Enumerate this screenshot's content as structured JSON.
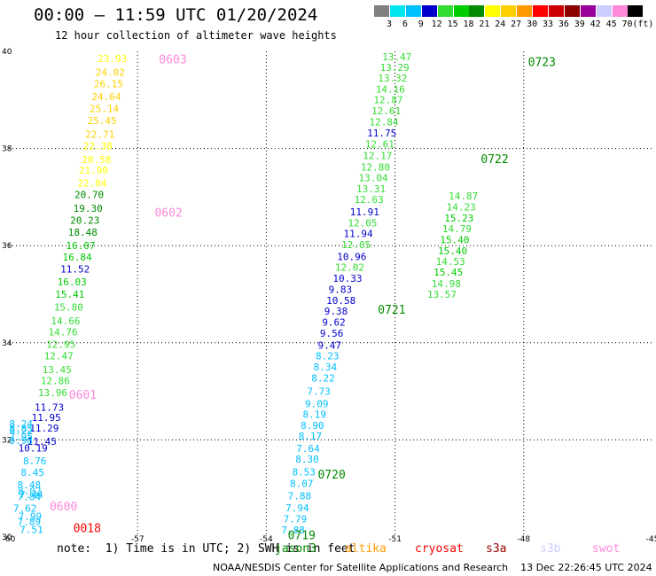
{
  "header": {
    "title": "00:00 – 11:59 UTC 01/20/2024",
    "subtitle": "12 hour collection of altimeter wave heights"
  },
  "colorbar": {
    "unit": "(ft)",
    "bins": [
      {
        "label": "3",
        "color": "#808080"
      },
      {
        "label": "6",
        "color": "#00e5ee"
      },
      {
        "label": "9",
        "color": "#00bfff"
      },
      {
        "label": "12",
        "color": "#0000cd"
      },
      {
        "label": "15",
        "color": "#33dd33"
      },
      {
        "label": "18",
        "color": "#00cc00"
      },
      {
        "label": "21",
        "color": "#008b00"
      },
      {
        "label": "24",
        "color": "#ffff00"
      },
      {
        "label": "27",
        "color": "#ffd000"
      },
      {
        "label": "30",
        "color": "#ff9900"
      },
      {
        "label": "33",
        "color": "#ff0000"
      },
      {
        "label": "36",
        "color": "#cc0000"
      },
      {
        "label": "39",
        "color": "#8b0000"
      },
      {
        "label": "42",
        "color": "#990099"
      },
      {
        "label": "45",
        "color": "#ccccff"
      },
      {
        "label": "70",
        "color": "#ff88dd"
      },
      {
        "label": "",
        "color": "#000000"
      }
    ]
  },
  "notes": "note:  1) Time is in UTC; 2) SWH is in feet",
  "satellites": [
    {
      "name": "jason3",
      "color": "#008b00"
    },
    {
      "name": "altika",
      "color": "#ff9900"
    },
    {
      "name": "cryosat",
      "color": "#ff0000"
    },
    {
      "name": "s3a",
      "color": "#990000"
    },
    {
      "name": "s3b",
      "color": "#ccccff"
    },
    {
      "name": "swot",
      "color": "#ff88dd"
    }
  ],
  "footer": "NOAA/NESDIS Center for Satellite Applications and Research    13 Dec 22:26:45 UTC 2024",
  "chart_data": {
    "type": "scatter",
    "xlim": [
      -60,
      -45
    ],
    "ylim": [
      30,
      40
    ],
    "xticks": [
      "-60",
      "-57",
      "-54",
      "-51",
      "-48",
      "-45"
    ],
    "yticks": [
      "30",
      "32",
      "34",
      "36",
      "38",
      "40"
    ],
    "grid": true,
    "points": [
      {
        "lon": -59.75,
        "lat": 30.08,
        "label": "7.51",
        "color": "#00bfff"
      },
      {
        "lon": -59.8,
        "lat": 30.25,
        "label": "7.89",
        "color": "#00bfff"
      },
      {
        "lon": -59.78,
        "lat": 30.36,
        "label": "7.99",
        "color": "#00bfff"
      },
      {
        "lon": -59.9,
        "lat": 30.52,
        "label": "7.62",
        "color": "#00bfff"
      },
      {
        "lon": -59.8,
        "lat": 30.76,
        "label": "7.84",
        "color": "#00bfff"
      },
      {
        "lon": -59.75,
        "lat": 30.8,
        "label": "7.44",
        "color": "#00bfff"
      },
      {
        "lon": -59.79,
        "lat": 30.88,
        "label": "8.02",
        "color": "#00bfff"
      },
      {
        "lon": -59.8,
        "lat": 31.0,
        "label": "8.48",
        "color": "#00bfff"
      },
      {
        "lon": -59.72,
        "lat": 31.26,
        "label": "8.45",
        "color": "#00bfff"
      },
      {
        "lon": -59.67,
        "lat": 31.5,
        "label": "8.76",
        "color": "#00bfff"
      },
      {
        "lon": -59.78,
        "lat": 31.76,
        "label": "10.19",
        "color": "#0000cd"
      },
      {
        "lon": -59.57,
        "lat": 31.9,
        "label": "11.45",
        "color": "#0000cd"
      },
      {
        "lon": -59.99,
        "lat": 31.92,
        "label": "9.98",
        "color": "#00bfff"
      },
      {
        "lon": -59.99,
        "lat": 32.0,
        "label": "7.95",
        "color": "#00bfff"
      },
      {
        "lon": -59.99,
        "lat": 32.12,
        "label": "8.22",
        "color": "#00bfff"
      },
      {
        "lon": -59.52,
        "lat": 32.17,
        "label": "11.29",
        "color": "#0000cd"
      },
      {
        "lon": -59.99,
        "lat": 32.16,
        "label": "8.85",
        "color": "#00bfff"
      },
      {
        "lon": -59.99,
        "lat": 32.26,
        "label": "8.24",
        "color": "#00bfff"
      },
      {
        "lon": -59.47,
        "lat": 32.39,
        "label": "11.95",
        "color": "#0000cd"
      },
      {
        "lon": -59.4,
        "lat": 32.6,
        "label": "11.73",
        "color": "#0000cd"
      },
      {
        "lon": -59.32,
        "lat": 32.9,
        "label": "13.96",
        "color": "#33dd33"
      },
      {
        "lon": -59.26,
        "lat": 33.15,
        "label": "12.86",
        "color": "#33dd33"
      },
      {
        "lon": -59.22,
        "lat": 33.38,
        "label": "13.45",
        "color": "#33dd33"
      },
      {
        "lon": -59.18,
        "lat": 33.66,
        "label": "12.47",
        "color": "#33dd33"
      },
      {
        "lon": -59.13,
        "lat": 33.9,
        "label": "12.95",
        "color": "#33dd33"
      },
      {
        "lon": -59.08,
        "lat": 34.15,
        "label": "14.76",
        "color": "#33dd33"
      },
      {
        "lon": -59.02,
        "lat": 34.38,
        "label": "14.66",
        "color": "#33dd33"
      },
      {
        "lon": -58.95,
        "lat": 34.66,
        "label": "15.80",
        "color": "#33dd33"
      },
      {
        "lon": -58.92,
        "lat": 34.93,
        "label": "15.41",
        "color": "#00cc00"
      },
      {
        "lon": -58.87,
        "lat": 35.18,
        "label": "16.03",
        "color": "#00cc00"
      },
      {
        "lon": -58.8,
        "lat": 35.45,
        "label": "11.52",
        "color": "#0000cd"
      },
      {
        "lon": -58.75,
        "lat": 35.69,
        "label": "16.84",
        "color": "#00cc00"
      },
      {
        "lon": -58.67,
        "lat": 35.93,
        "label": "16.07",
        "color": "#00cc00"
      },
      {
        "lon": -58.62,
        "lat": 36.2,
        "label": "18.48",
        "color": "#008b00"
      },
      {
        "lon": -58.57,
        "lat": 36.45,
        "label": "20.23",
        "color": "#008b00"
      },
      {
        "lon": -58.5,
        "lat": 36.7,
        "label": "19.30",
        "color": "#008b00"
      },
      {
        "lon": -58.47,
        "lat": 36.98,
        "label": "20.70",
        "color": "#008b00"
      },
      {
        "lon": -58.4,
        "lat": 37.22,
        "label": "22.04",
        "color": "#ffff00"
      },
      {
        "lon": -58.37,
        "lat": 37.48,
        "label": "21.90",
        "color": "#ffff00"
      },
      {
        "lon": -58.3,
        "lat": 37.7,
        "label": "20.58",
        "color": "#ffff00"
      },
      {
        "lon": -58.27,
        "lat": 37.98,
        "label": "22.38",
        "color": "#ffff00"
      },
      {
        "lon": -58.22,
        "lat": 38.22,
        "label": "22.71",
        "color": "#ffd000"
      },
      {
        "lon": -58.17,
        "lat": 38.5,
        "label": "25.45",
        "color": "#ffd000"
      },
      {
        "lon": -58.12,
        "lat": 38.75,
        "label": "25.14",
        "color": "#ffd000"
      },
      {
        "lon": -58.07,
        "lat": 39.0,
        "label": "24.64",
        "color": "#ffd000"
      },
      {
        "lon": -58.02,
        "lat": 39.26,
        "label": "26.15",
        "color": "#ffd000"
      },
      {
        "lon": -57.98,
        "lat": 39.5,
        "label": "24.02",
        "color": "#ffd000"
      },
      {
        "lon": -57.93,
        "lat": 39.78,
        "label": "23.93",
        "color": "#ffff00"
      },
      {
        "lon": -53.65,
        "lat": 30.07,
        "label": "7.88",
        "color": "#00bfff"
      },
      {
        "lon": -53.6,
        "lat": 30.3,
        "label": "7.79",
        "color": "#00bfff"
      },
      {
        "lon": -53.55,
        "lat": 30.53,
        "label": "7.94",
        "color": "#00bfff"
      },
      {
        "lon": -53.5,
        "lat": 30.78,
        "label": "7.88",
        "color": "#00bfff"
      },
      {
        "lon": -53.45,
        "lat": 31.03,
        "label": "8.07",
        "color": "#00bfff"
      },
      {
        "lon": -53.4,
        "lat": 31.27,
        "label": "8.53",
        "color": "#00bfff"
      },
      {
        "lon": -53.32,
        "lat": 31.53,
        "label": "8.30",
        "color": "#00bfff"
      },
      {
        "lon": -53.3,
        "lat": 31.75,
        "label": "7.64",
        "color": "#00bfff"
      },
      {
        "lon": -53.25,
        "lat": 32.01,
        "label": "8.17",
        "color": "#00bfff"
      },
      {
        "lon": -53.2,
        "lat": 32.23,
        "label": "8.90",
        "color": "#00bfff"
      },
      {
        "lon": -53.15,
        "lat": 32.45,
        "label": "8.19",
        "color": "#00bfff"
      },
      {
        "lon": -53.1,
        "lat": 32.67,
        "label": "9.09",
        "color": "#00bfff"
      },
      {
        "lon": -53.05,
        "lat": 32.93,
        "label": "7.73",
        "color": "#00bfff"
      },
      {
        "lon": -52.95,
        "lat": 33.2,
        "label": "8.22",
        "color": "#00bfff"
      },
      {
        "lon": -52.9,
        "lat": 33.43,
        "label": "8.34",
        "color": "#00bfff"
      },
      {
        "lon": -52.85,
        "lat": 33.66,
        "label": "8.23",
        "color": "#00bfff"
      },
      {
        "lon": -52.8,
        "lat": 33.88,
        "label": "9.47",
        "color": "#0000cd"
      },
      {
        "lon": -52.75,
        "lat": 34.12,
        "label": "9.56",
        "color": "#0000cd"
      },
      {
        "lon": -52.7,
        "lat": 34.35,
        "label": "9.62",
        "color": "#0000cd"
      },
      {
        "lon": -52.65,
        "lat": 34.58,
        "label": "9.38",
        "color": "#0000cd"
      },
      {
        "lon": -52.6,
        "lat": 34.8,
        "label": "10.58",
        "color": "#0000cd"
      },
      {
        "lon": -52.55,
        "lat": 35.03,
        "label": "9.83",
        "color": "#0000cd"
      },
      {
        "lon": -52.45,
        "lat": 35.26,
        "label": "10.33",
        "color": "#0000cd"
      },
      {
        "lon": -52.4,
        "lat": 35.48,
        "label": "12.02",
        "color": "#33dd33"
      },
      {
        "lon": -52.35,
        "lat": 35.7,
        "label": "10.96",
        "color": "#0000cd"
      },
      {
        "lon": -52.25,
        "lat": 35.95,
        "label": "12.05",
        "color": "#33dd33"
      },
      {
        "lon": -52.2,
        "lat": 36.18,
        "label": "11.94",
        "color": "#0000cd"
      },
      {
        "lon": -52.1,
        "lat": 36.4,
        "label": "12.05",
        "color": "#33dd33"
      },
      {
        "lon": -52.05,
        "lat": 36.62,
        "label": "11.91",
        "color": "#0000cd"
      },
      {
        "lon": -51.95,
        "lat": 36.88,
        "label": "12.63",
        "color": "#33dd33"
      },
      {
        "lon": -51.9,
        "lat": 37.1,
        "label": "13.31",
        "color": "#33dd33"
      },
      {
        "lon": -51.85,
        "lat": 37.33,
        "label": "13.04",
        "color": "#33dd33"
      },
      {
        "lon": -51.8,
        "lat": 37.55,
        "label": "12.80",
        "color": "#33dd33"
      },
      {
        "lon": -51.75,
        "lat": 37.78,
        "label": "12.17",
        "color": "#33dd33"
      },
      {
        "lon": -51.7,
        "lat": 38.02,
        "label": "12.61",
        "color": "#33dd33"
      },
      {
        "lon": -51.65,
        "lat": 38.25,
        "label": "11.75",
        "color": "#0000cd"
      },
      {
        "lon": -51.6,
        "lat": 38.48,
        "label": "12.84",
        "color": "#33dd33"
      },
      {
        "lon": -51.55,
        "lat": 38.7,
        "label": "12.61",
        "color": "#33dd33"
      },
      {
        "lon": -51.5,
        "lat": 38.93,
        "label": "12.87",
        "color": "#33dd33"
      },
      {
        "lon": -51.45,
        "lat": 39.15,
        "label": "14.16",
        "color": "#33dd33"
      },
      {
        "lon": -51.4,
        "lat": 39.38,
        "label": "13.32",
        "color": "#33dd33"
      },
      {
        "lon": -51.35,
        "lat": 39.6,
        "label": "13.29",
        "color": "#33dd33"
      },
      {
        "lon": -51.3,
        "lat": 39.82,
        "label": "13.47",
        "color": "#33dd33"
      },
      {
        "lon": -50.25,
        "lat": 34.93,
        "label": "13.57",
        "color": "#33dd33"
      },
      {
        "lon": -50.15,
        "lat": 35.15,
        "label": "14.98",
        "color": "#33dd33"
      },
      {
        "lon": -50.1,
        "lat": 35.38,
        "label": "15.45",
        "color": "#00cc00"
      },
      {
        "lon": -50.05,
        "lat": 35.6,
        "label": "14.53",
        "color": "#33dd33"
      },
      {
        "lon": -50.0,
        "lat": 35.82,
        "label": "15.40",
        "color": "#00cc00"
      },
      {
        "lon": -49.95,
        "lat": 36.05,
        "label": "15.40",
        "color": "#00cc00"
      },
      {
        "lon": -49.9,
        "lat": 36.28,
        "label": "14.79",
        "color": "#33dd33"
      },
      {
        "lon": -49.85,
        "lat": 36.5,
        "label": "15.23",
        "color": "#00cc00"
      },
      {
        "lon": -49.8,
        "lat": 36.72,
        "label": "14.23",
        "color": "#33dd33"
      },
      {
        "lon": -49.75,
        "lat": 36.95,
        "label": "14.87",
        "color": "#33dd33"
      }
    ],
    "time_labels": [
      {
        "lon": -56.5,
        "lat": 39.75,
        "label": "0603",
        "color": "#ff88dd"
      },
      {
        "lon": -56.6,
        "lat": 36.6,
        "label": "0602",
        "color": "#ff88dd"
      },
      {
        "lon": -58.6,
        "lat": 32.85,
        "label": "0601",
        "color": "#ff88dd"
      },
      {
        "lon": -59.05,
        "lat": 30.55,
        "label": "0600",
        "color": "#ff88dd"
      },
      {
        "lon": -58.5,
        "lat": 30.1,
        "label": "0018",
        "color": "#ff0000"
      },
      {
        "lon": -47.9,
        "lat": 39.7,
        "label": "0723",
        "color": "#008b00"
      },
      {
        "lon": -49.0,
        "lat": 37.7,
        "label": "0722",
        "color": "#008b00"
      },
      {
        "lon": -51.4,
        "lat": 34.6,
        "label": "0721",
        "color": "#008b00"
      },
      {
        "lon": -52.8,
        "lat": 31.2,
        "label": "0720",
        "color": "#008b00"
      },
      {
        "lon": -53.5,
        "lat": 29.95,
        "label": "0719",
        "color": "#008b00"
      }
    ]
  }
}
